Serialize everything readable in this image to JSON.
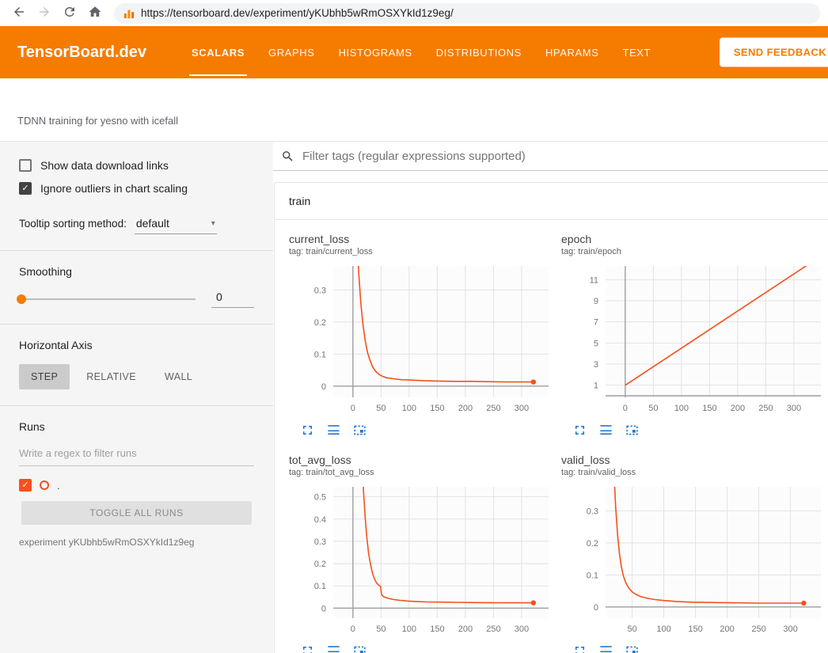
{
  "browser": {
    "url": "https://tensorboard.dev/experiment/yKUbhb5wRmOSXYkId1z9eg/"
  },
  "header": {
    "brand": "TensorBoard.dev",
    "tabs": [
      {
        "label": "SCALARS",
        "active": true
      },
      {
        "label": "GRAPHS",
        "active": false
      },
      {
        "label": "HISTOGRAMS",
        "active": false
      },
      {
        "label": "DISTRIBUTIONS",
        "active": false
      },
      {
        "label": "HPARAMS",
        "active": false
      },
      {
        "label": "TEXT",
        "active": false
      }
    ],
    "feedback_button": "SEND FEEDBACK"
  },
  "subheader": {
    "title": "TDNN training for yesno with icefall"
  },
  "sidebar": {
    "checkboxes": [
      {
        "label": "Show data download links",
        "checked": false
      },
      {
        "label": "Ignore outliers in chart scaling",
        "checked": true
      }
    ],
    "tooltip_sorting": {
      "label": "Tooltip sorting method:",
      "value": "default"
    },
    "smoothing": {
      "label": "Smoothing",
      "value": "0"
    },
    "horizontal_axis": {
      "label": "Horizontal Axis",
      "options": [
        "STEP",
        "RELATIVE",
        "WALL"
      ],
      "selected": "STEP"
    },
    "runs": {
      "label": "Runs",
      "filter_placeholder": "Write a regex to filter runs",
      "run_items": [
        {
          "name": ".",
          "checked": true,
          "color": "#f4511e"
        }
      ],
      "toggle_button": "TOGGLE ALL RUNS",
      "experiment_note": "experiment yKUbhb5wRmOSXYkId1z9eg"
    }
  },
  "main": {
    "filter_placeholder": "Filter tags (regular expressions supported)",
    "section": {
      "name": "train"
    }
  },
  "colors": {
    "header_orange": "#f57c00",
    "line": "#f4511e",
    "icon_blue": "#1976d2",
    "grid": "#e3e3e3",
    "zero_axis": "#9e9e9e",
    "tick_text": "#757575"
  },
  "icons": [
    "back-arrow-icon",
    "forward-arrow-icon",
    "refresh-icon",
    "home-icon",
    "site-favicon-icon",
    "search-icon",
    "chevron-down-icon",
    "checkbox-icon",
    "run-color-swatch",
    "fullscreen-icon",
    "log-scale-icon",
    "fit-domain-icon"
  ],
  "chart_data": [
    {
      "type": "line",
      "title": "current_loss",
      "tag": "tag: train/current_loss",
      "series_name": ".",
      "xlabel": "",
      "ylabel": "",
      "xlim": [
        -35,
        348
      ],
      "ylim": [
        -0.035,
        0.375
      ],
      "xticks": [
        0,
        50,
        100,
        150,
        200,
        250,
        300
      ],
      "yticks": [
        0,
        0.1,
        0.2,
        0.3
      ],
      "points": [
        [
          2,
          0.9
        ],
        [
          6,
          0.55
        ],
        [
          10,
          0.36
        ],
        [
          14,
          0.26
        ],
        [
          18,
          0.19
        ],
        [
          22,
          0.14
        ],
        [
          26,
          0.105
        ],
        [
          30,
          0.082
        ],
        [
          35,
          0.06
        ],
        [
          40,
          0.047
        ],
        [
          46,
          0.037
        ],
        [
          52,
          0.031
        ],
        [
          60,
          0.026
        ],
        [
          72,
          0.023
        ],
        [
          86,
          0.02
        ],
        [
          100,
          0.019
        ],
        [
          125,
          0.017
        ],
        [
          150,
          0.016
        ],
        [
          180,
          0.015
        ],
        [
          210,
          0.015
        ],
        [
          240,
          0.014
        ],
        [
          270,
          0.013
        ],
        [
          300,
          0.013
        ],
        [
          321,
          0.013
        ]
      ],
      "end_dot": [
        321,
        0.013
      ]
    },
    {
      "type": "line",
      "title": "epoch",
      "tag": "tag: train/epoch",
      "series_name": ".",
      "xlabel": "",
      "ylabel": "",
      "xlim": [
        -35,
        348
      ],
      "ylim": [
        -0.15,
        12.3
      ],
      "xticks": [
        0,
        50,
        100,
        150,
        200,
        250,
        300
      ],
      "yticks": [
        1,
        3,
        5,
        7,
        9,
        11
      ],
      "points": [
        [
          0,
          1
        ],
        [
          330,
          12.6
        ]
      ],
      "end_dot": null
    },
    {
      "type": "line",
      "title": "tot_avg_loss",
      "tag": "tag: train/tot_avg_loss",
      "series_name": ".",
      "xlabel": "",
      "ylabel": "",
      "xlim": [
        -35,
        348
      ],
      "ylim": [
        -0.045,
        0.545
      ],
      "xticks": [
        0,
        50,
        100,
        150,
        200,
        250,
        300
      ],
      "yticks": [
        0,
        0.1,
        0.2,
        0.3,
        0.4,
        0.5
      ],
      "points": [
        [
          13,
          0.9
        ],
        [
          16,
          0.68
        ],
        [
          19,
          0.52
        ],
        [
          22,
          0.4
        ],
        [
          25,
          0.31
        ],
        [
          28,
          0.245
        ],
        [
          31,
          0.2
        ],
        [
          34,
          0.165
        ],
        [
          37,
          0.14
        ],
        [
          40,
          0.122
        ],
        [
          43,
          0.11
        ],
        [
          46,
          0.103
        ],
        [
          49,
          0.098
        ],
        [
          51,
          0.06
        ],
        [
          55,
          0.051
        ],
        [
          60,
          0.046
        ],
        [
          66,
          0.042
        ],
        [
          74,
          0.038
        ],
        [
          84,
          0.035
        ],
        [
          96,
          0.032
        ],
        [
          112,
          0.03
        ],
        [
          132,
          0.028
        ],
        [
          156,
          0.027
        ],
        [
          185,
          0.026
        ],
        [
          220,
          0.025
        ],
        [
          260,
          0.024
        ],
        [
          300,
          0.024
        ],
        [
          321,
          0.024
        ]
      ],
      "end_dot": [
        321,
        0.024
      ]
    },
    {
      "type": "line",
      "title": "valid_loss",
      "tag": "tag: train/valid_loss",
      "series_name": ".",
      "xlabel": "",
      "ylabel": "",
      "xlim": [
        8,
        348
      ],
      "ylim": [
        -0.035,
        0.375
      ],
      "xticks": [
        50,
        100,
        150,
        200,
        250,
        300
      ],
      "yticks": [
        0,
        0.1,
        0.2,
        0.3
      ],
      "points": [
        [
          15,
          0.9
        ],
        [
          18,
          0.62
        ],
        [
          21,
          0.43
        ],
        [
          24,
          0.31
        ],
        [
          27,
          0.225
        ],
        [
          30,
          0.165
        ],
        [
          33,
          0.125
        ],
        [
          36,
          0.098
        ],
        [
          40,
          0.075
        ],
        [
          45,
          0.058
        ],
        [
          50,
          0.047
        ],
        [
          56,
          0.039
        ],
        [
          64,
          0.032
        ],
        [
          74,
          0.027
        ],
        [
          86,
          0.023
        ],
        [
          100,
          0.02
        ],
        [
          120,
          0.017
        ],
        [
          145,
          0.015
        ],
        [
          175,
          0.014
        ],
        [
          210,
          0.013
        ],
        [
          250,
          0.012
        ],
        [
          290,
          0.012
        ],
        [
          321,
          0.012
        ]
      ],
      "end_dot": [
        321,
        0.012
      ]
    }
  ]
}
